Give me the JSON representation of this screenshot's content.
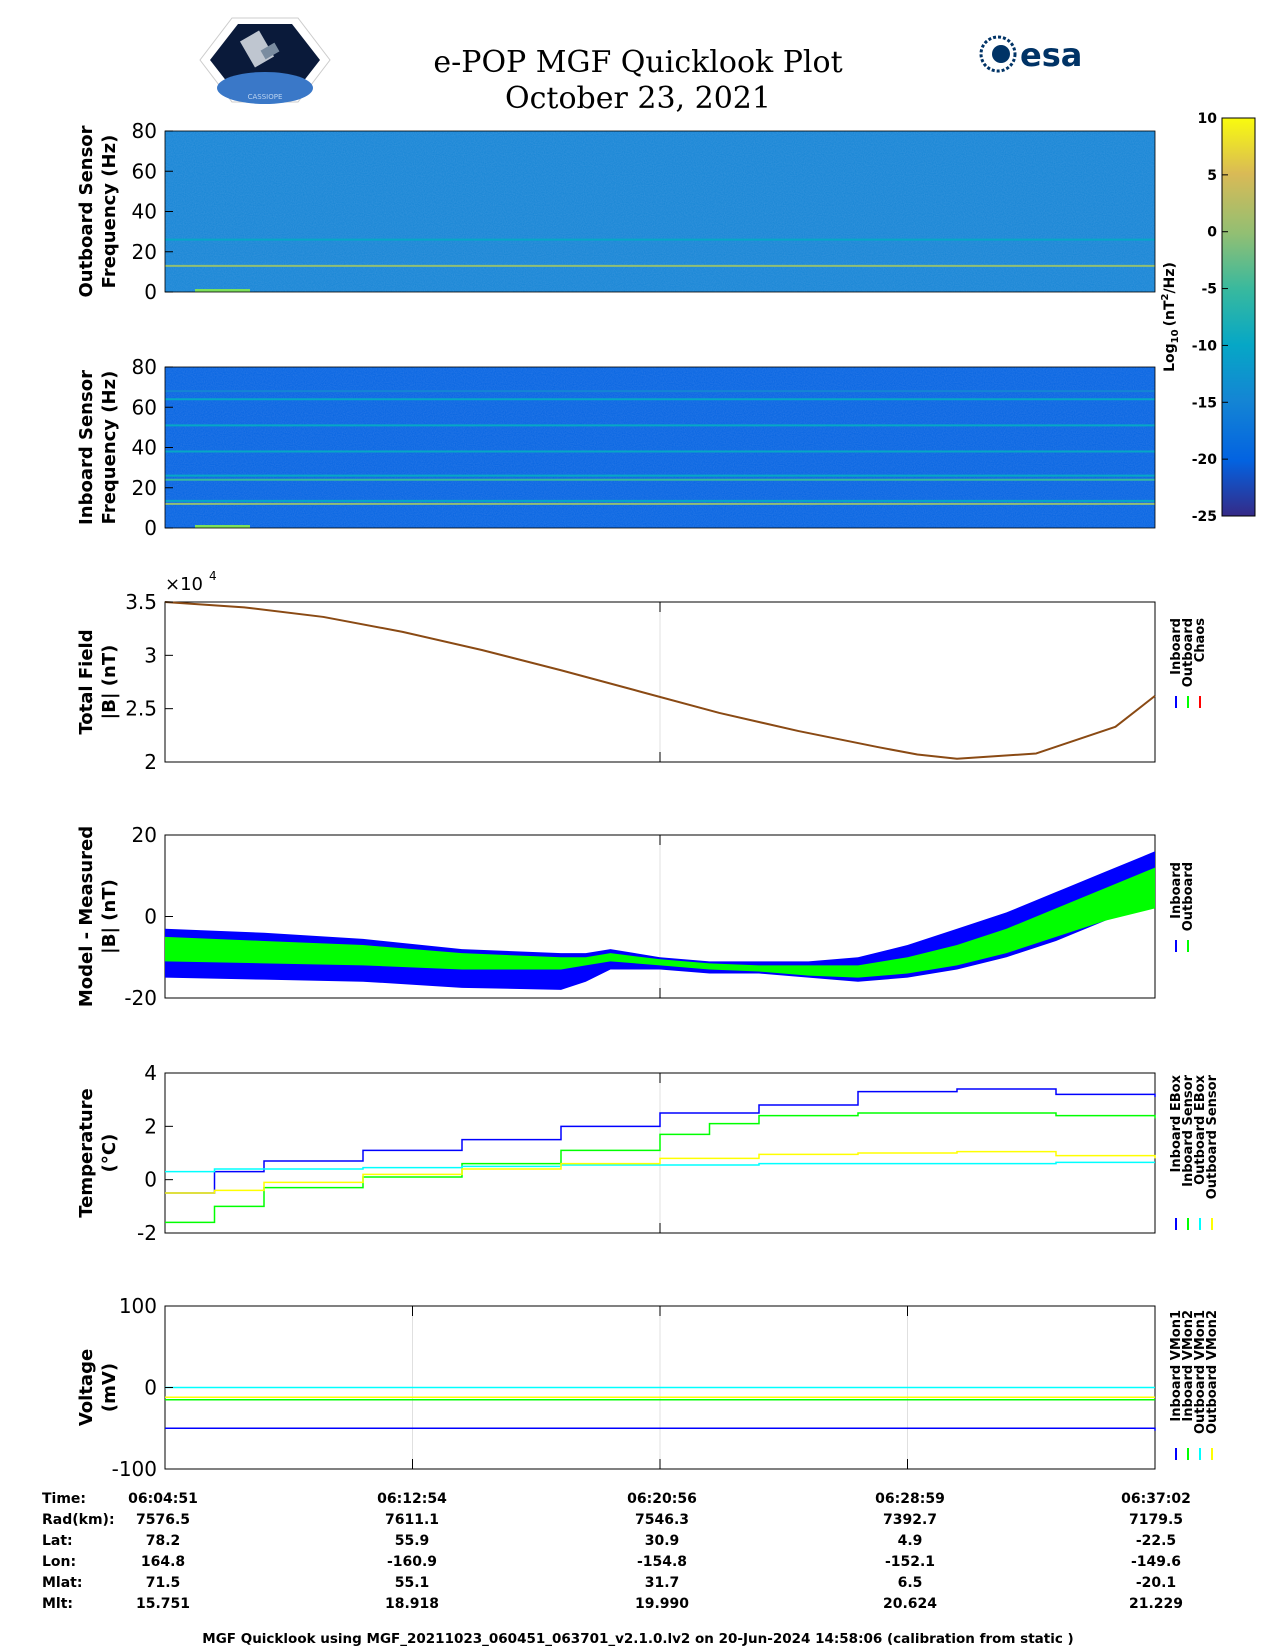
{
  "header": {
    "title": "e-POP MGF Quicklook Plot",
    "date": "October 23, 2021",
    "logo_left": "CASSIOPE",
    "logo_right": "esa"
  },
  "colors": {
    "blue": "#0000ff",
    "green": "#00ff00",
    "red": "#ff0000",
    "cyan": "#00ffff",
    "yellow": "#ffff00",
    "total_field_line": "#8a4a14",
    "spectrogram_outboard_bg": "#2f86e6",
    "spectrogram_inboard_bg": "#3447d0"
  },
  "colorbar": {
    "label": "Log10 (nT2/Hz)",
    "label_base": "Log",
    "label_sub": "10",
    "label_unit_a": "(nT",
    "label_sup": "2",
    "label_unit_b": "/Hz)",
    "range": [
      -25,
      10
    ],
    "ticks": [
      "10",
      "5",
      "0",
      "-5",
      "-10",
      "-15",
      "-20",
      "-25"
    ],
    "colormap": "parula"
  },
  "chart_data": [
    {
      "type": "heatmap",
      "name": "outboard-spectrogram",
      "ylabel_line1": "Outboard Sensor",
      "ylabel_line2": "Frequency (Hz)",
      "ylim": [
        0,
        80
      ],
      "yticks": [
        "80",
        "60",
        "40",
        "20",
        "0"
      ],
      "background_level": -13,
      "lines": [
        {
          "freq": 13,
          "level": 2
        },
        {
          "freq": 26,
          "level": -8
        }
      ]
    },
    {
      "type": "heatmap",
      "name": "inboard-spectrogram",
      "ylabel_line1": "Inboard Sensor",
      "ylabel_line2": "Frequency (Hz)",
      "ylim": [
        0,
        80
      ],
      "yticks": [
        "80",
        "60",
        "40",
        "20",
        "0"
      ],
      "background_level": -20,
      "lines": [
        {
          "freq": 12,
          "level": 0
        },
        {
          "freq": 13.5,
          "level": -8
        },
        {
          "freq": 24,
          "level": -3
        },
        {
          "freq": 26,
          "level": -8
        },
        {
          "freq": 38,
          "level": -12
        },
        {
          "freq": 51,
          "level": -12
        },
        {
          "freq": 64,
          "level": -12
        },
        {
          "freq": 68,
          "level": -14
        }
      ]
    },
    {
      "type": "line",
      "name": "total-field",
      "ylabel_line1": "Total Field",
      "ylabel_line2": "|B| (nT)",
      "exponent_base": "×10",
      "exponent_power": "4",
      "ylim": [
        2,
        3.5
      ],
      "yticks": [
        "3.5",
        "3",
        "2.5",
        "2"
      ],
      "x": [
        0,
        0.08,
        0.16,
        0.24,
        0.32,
        0.4,
        0.48,
        0.56,
        0.64,
        0.72,
        0.76,
        0.8,
        0.88,
        0.96,
        1.0
      ],
      "series": [
        {
          "values": [
            3.5,
            3.45,
            3.36,
            3.22,
            3.05,
            2.86,
            2.66,
            2.46,
            2.29,
            2.14,
            2.07,
            2.03,
            2.08,
            2.33,
            2.62
          ]
        }
      ],
      "legend": [
        "Inboard",
        "Outboard",
        "Chaos"
      ]
    },
    {
      "type": "line",
      "name": "model-minus-measured",
      "ylabel_line1": "Model - Measured",
      "ylabel_line2": "|B| (nT)",
      "ylim": [
        -20,
        20
      ],
      "yticks": [
        "20",
        "0",
        "-20"
      ],
      "x": [
        0,
        0.1,
        0.2,
        0.3,
        0.4,
        0.425,
        0.45,
        0.5,
        0.55,
        0.6,
        0.65,
        0.7,
        0.75,
        0.8,
        0.85,
        0.9,
        0.95,
        1.0
      ],
      "series": [
        {
          "name": "Inboard",
          "upper": [
            -3,
            -4,
            -5.5,
            -8,
            -9,
            -9,
            -8,
            -10,
            -11,
            -11,
            -11,
            -10,
            -7,
            -3,
            1,
            6,
            11,
            16
          ],
          "lower": [
            -15,
            -15.5,
            -16,
            -17.5,
            -18,
            -16,
            -13,
            -13,
            -14,
            -14,
            -15,
            -16,
            -15,
            -13,
            -10,
            -6,
            -1,
            4
          ]
        },
        {
          "name": "Outboard",
          "upper": [
            -5,
            -6,
            -7,
            -9,
            -10,
            -10,
            -9,
            -10.5,
            -11.5,
            -12,
            -12,
            -12,
            -10,
            -7,
            -3,
            2,
            7,
            12
          ],
          "lower": [
            -11,
            -11.5,
            -12,
            -13,
            -13,
            -12,
            -11,
            -12,
            -13,
            -13.5,
            -14.5,
            -15,
            -14,
            -12,
            -9,
            -5,
            -1,
            2
          ]
        }
      ],
      "legend": [
        "Inboard",
        "Outboard"
      ]
    },
    {
      "type": "line",
      "name": "temperature",
      "ylabel_line1": "Temperature",
      "ylabel_line2": "(°C)",
      "ylim": [
        -2,
        4
      ],
      "yticks": [
        "4",
        "2",
        "0",
        "-2"
      ],
      "series": [
        {
          "name": "Inboard EBox",
          "x": [
            0,
            0.05,
            0.1,
            0.2,
            0.3,
            0.4,
            0.5,
            0.6,
            0.7,
            0.8,
            0.9,
            1.0
          ],
          "values": [
            -0.5,
            0.3,
            0.7,
            1.1,
            1.5,
            2.0,
            2.5,
            2.8,
            3.3,
            3.4,
            3.2,
            3.1
          ]
        },
        {
          "name": "Inboard Sensor",
          "x": [
            0,
            0.05,
            0.1,
            0.2,
            0.3,
            0.4,
            0.5,
            0.55,
            0.6,
            0.7,
            0.8,
            0.9,
            1.0
          ],
          "values": [
            -1.6,
            -1.0,
            -0.3,
            0.1,
            0.6,
            1.1,
            1.7,
            2.1,
            2.4,
            2.5,
            2.5,
            2.4,
            2.3
          ]
        },
        {
          "name": "Outboard EBox",
          "x": [
            0,
            0.02,
            0.05,
            0.1,
            0.2,
            0.3,
            0.4,
            0.5,
            0.6,
            0.7,
            0.8,
            0.9,
            1.0
          ],
          "values": [
            0.3,
            0.3,
            0.4,
            0.4,
            0.45,
            0.5,
            0.55,
            0.55,
            0.6,
            0.6,
            0.6,
            0.65,
            0.65
          ]
        },
        {
          "name": "Outboard Sensor",
          "x": [
            0,
            0.05,
            0.1,
            0.2,
            0.3,
            0.4,
            0.5,
            0.6,
            0.7,
            0.8,
            0.9,
            1.0
          ],
          "values": [
            -0.5,
            -0.4,
            -0.1,
            0.2,
            0.4,
            0.6,
            0.8,
            0.95,
            1.0,
            1.05,
            0.9,
            0.8
          ]
        }
      ],
      "legend": [
        "Inboard EBox",
        "Inboard Sensor",
        "Outboard EBox",
        "Outboard Sensor"
      ]
    },
    {
      "type": "line",
      "name": "voltage",
      "ylabel_line1": "Voltage",
      "ylabel_line2": "(mV)",
      "ylim": [
        -100,
        100
      ],
      "yticks": [
        "100",
        "0",
        "-100"
      ],
      "series": [
        {
          "name": "Inboard VMon1",
          "x": [
            0,
            1
          ],
          "values": [
            -50,
            -53
          ]
        },
        {
          "name": "Inboard VMon2",
          "x": [
            0,
            1
          ],
          "values": [
            -15,
            -15
          ]
        },
        {
          "name": "Outboard VMon1",
          "x": [
            0,
            1
          ],
          "values": [
            0,
            0
          ]
        },
        {
          "name": "Outboard VMon2",
          "x": [
            0,
            1
          ],
          "values": [
            -12,
            -12
          ]
        }
      ],
      "legend": [
        "Inboard VMon1",
        "Inboard VMon2",
        "Outboard VMon1",
        "Outboard VMon2"
      ]
    }
  ],
  "ephemeris": {
    "row_labels": [
      "Time:",
      "Rad(km):",
      "Lat:",
      "Lon:",
      "Mlat:",
      "Mlt:"
    ],
    "columns": [
      [
        "06:04:51",
        "7576.5",
        "78.2",
        "164.8",
        "71.5",
        "15.751"
      ],
      [
        "06:12:54",
        "7611.1",
        "55.9",
        "-160.9",
        "55.1",
        "18.918"
      ],
      [
        "06:20:56",
        "7546.3",
        "30.9",
        "-154.8",
        "31.7",
        "19.990"
      ],
      [
        "06:28:59",
        "7392.7",
        "4.9",
        "-152.1",
        "6.5",
        "20.624"
      ],
      [
        "06:37:02",
        "7179.5",
        "-22.5",
        "-149.6",
        "-20.1",
        "21.229"
      ]
    ]
  },
  "footer": "MGF Quicklook using MGF_20211023_060451_063701_v2.1.0.lv2 on 20-Jun-2024 14:58:06 (calibration from static )"
}
